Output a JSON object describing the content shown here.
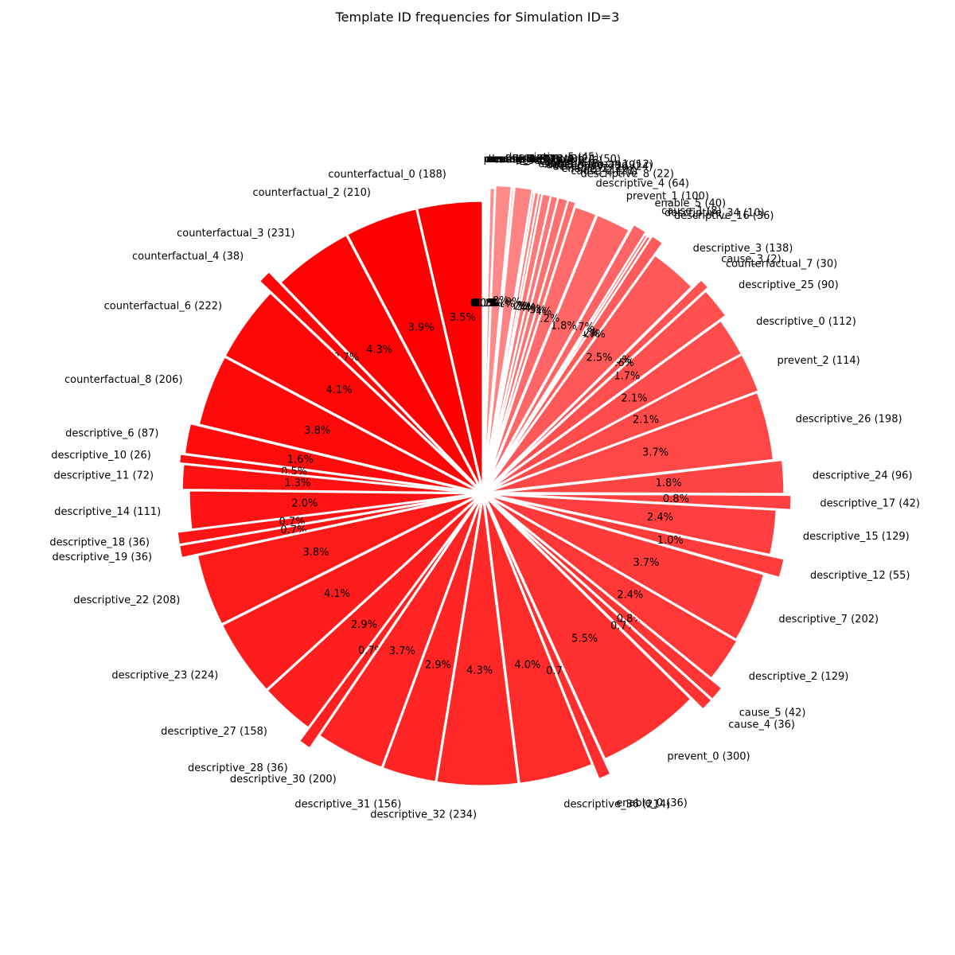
{
  "chart_data": {
    "type": "pie",
    "title": "Template ID frequencies for Simulation ID=3",
    "start_angle": "top, counter-clockwise",
    "color": "#ff0000",
    "slices": [
      {
        "label": "counterfactual_0 (188)",
        "value": 188,
        "pct": "3.5%",
        "color": "#ff0000"
      },
      {
        "label": "counterfactual_2 (210)",
        "value": 210,
        "pct": "3.9%",
        "color": "#ff0000"
      },
      {
        "label": "counterfactual_3 (231)",
        "value": 231,
        "pct": "4.3%",
        "color": "#ff0303"
      },
      {
        "label": "counterfactual_4 (38)",
        "value": 38,
        "pct": "0.7%",
        "color": "#ff0505"
      },
      {
        "label": "counterfactual_6 (222)",
        "value": 222,
        "pct": "4.1%",
        "color": "#ff0707"
      },
      {
        "label": "counterfactual_8 (206)",
        "value": 206,
        "pct": "3.8%",
        "color": "#ff0a0a"
      },
      {
        "label": "descriptive_6 (87)",
        "value": 87,
        "pct": "1.6%",
        "color": "#ff0d0d"
      },
      {
        "label": "descriptive_10 (26)",
        "value": 26,
        "pct": "0.5%",
        "color": "#ff0f0f"
      },
      {
        "label": "descriptive_11 (72)",
        "value": 72,
        "pct": "1.3%",
        "color": "#ff1111"
      },
      {
        "label": "descriptive_14 (111)",
        "value": 111,
        "pct": "2.0%",
        "color": "#ff1313"
      },
      {
        "label": "descriptive_18 (36)",
        "value": 36,
        "pct": "0.7%",
        "color": "#ff1515"
      },
      {
        "label": "descriptive_19 (36)",
        "value": 36,
        "pct": "0.7%",
        "color": "#ff1717"
      },
      {
        "label": "descriptive_22 (208)",
        "value": 208,
        "pct": "3.8%",
        "color": "#ff1a1a"
      },
      {
        "label": "descriptive_23 (224)",
        "value": 224,
        "pct": "4.1%",
        "color": "#ff1c1c"
      },
      {
        "label": "descriptive_27 (158)",
        "value": 158,
        "pct": "2.9%",
        "color": "#ff1f1f"
      },
      {
        "label": "descriptive_28 (36)",
        "value": 36,
        "pct": "0.7%",
        "color": "#ff2121"
      },
      {
        "label": "descriptive_30 (200)",
        "value": 200,
        "pct": "3.7%",
        "color": "#ff2323"
      },
      {
        "label": "descriptive_31 (156)",
        "value": 156,
        "pct": "2.9%",
        "color": "#ff2525"
      },
      {
        "label": "descriptive_32 (234)",
        "value": 234,
        "pct": "4.3%",
        "color": "#ff2828"
      },
      {
        "label": "descriptive_36 (214)",
        "value": 214,
        "pct": "4.0%",
        "color": "#ff2b2b"
      },
      {
        "label": "enable_0 (36)",
        "value": 36,
        "pct": "0.7%",
        "color": "#ff2d2d"
      },
      {
        "label": "prevent_0 (300)",
        "value": 300,
        "pct": "5.5%",
        "color": "#ff3030"
      },
      {
        "label": "cause_4 (36)",
        "value": 36,
        "pct": "0.7%",
        "color": "#ff3232"
      },
      {
        "label": "cause_5 (42)",
        "value": 42,
        "pct": "0.8%",
        "color": "#ff3434"
      },
      {
        "label": "descriptive_2 (129)",
        "value": 129,
        "pct": "2.4%",
        "color": "#ff3737"
      },
      {
        "label": "descriptive_7 (202)",
        "value": 202,
        "pct": "3.7%",
        "color": "#ff3a3a"
      },
      {
        "label": "descriptive_12 (55)",
        "value": 55,
        "pct": "1.0%",
        "color": "#ff3c3c"
      },
      {
        "label": "descriptive_15 (129)",
        "value": 129,
        "pct": "2.4%",
        "color": "#ff3f3f"
      },
      {
        "label": "descriptive_17 (42)",
        "value": 42,
        "pct": "0.8%",
        "color": "#ff4141"
      },
      {
        "label": "descriptive_24 (96)",
        "value": 96,
        "pct": "1.8%",
        "color": "#ff4444"
      },
      {
        "label": "descriptive_26 (198)",
        "value": 198,
        "pct": "3.7%",
        "color": "#ff4747"
      },
      {
        "label": "prevent_2 (114)",
        "value": 114,
        "pct": "2.1%",
        "color": "#ff4a4a"
      },
      {
        "label": "descriptive_0 (112)",
        "value": 112,
        "pct": "2.1%",
        "color": "#ff4c4c"
      },
      {
        "label": "descriptive_25 (90)",
        "value": 90,
        "pct": "1.7%",
        "color": "#ff4f4f"
      },
      {
        "label": "counterfactual_7 (30)",
        "value": 30,
        "pct": "0.6%",
        "color": "#ff5252"
      },
      {
        "label": "cause_3 (2)",
        "value": 2,
        "pct": "0.0%",
        "color": "#ff5555"
      },
      {
        "label": "descriptive_3 (138)",
        "value": 138,
        "pct": "2.5%",
        "color": "#ff5858"
      },
      {
        "label": "descriptive_16 (36)",
        "value": 36,
        "pct": "0.7%",
        "color": "#ff5b5b"
      },
      {
        "label": "descriptive_34 (10)",
        "value": 10,
        "pct": "0.2%",
        "color": "#ff5e5e"
      },
      {
        "label": "cause_1 (8)",
        "value": 8,
        "pct": "0.1%",
        "color": "#ff6161"
      },
      {
        "label": "enable_5 (40)",
        "value": 40,
        "pct": "0.7%",
        "color": "#ff6464"
      },
      {
        "label": "prevent_1 (100)",
        "value": 100,
        "pct": "1.8%",
        "color": "#ff6767"
      },
      {
        "label": "descriptive_4 (64)",
        "value": 64,
        "pct": "1.2%",
        "color": "#ff6a6a"
      },
      {
        "label": "descriptive_8 (22)",
        "value": 22,
        "pct": "0.4%",
        "color": "#ff6d6d"
      },
      {
        "label": "cause_2 (28)",
        "value": 28,
        "pct": "0.5%",
        "color": "#ff7070"
      },
      {
        "label": "enable_2 (20)",
        "value": 20,
        "pct": "0.4%",
        "color": "#ff7474"
      },
      {
        "label": "descriptive_20 (24)",
        "value": 24,
        "pct": "0.4%",
        "color": "#ff7777"
      },
      {
        "label": "descriptive_29 (9)",
        "value": 9,
        "pct": "0.2%",
        "color": "#ff7a7a"
      },
      {
        "label": "counterfactual_1 (12)",
        "value": 12,
        "pct": "0.2%",
        "color": "#ff7d7d"
      },
      {
        "label": "enable_4 (6)",
        "value": 6,
        "pct": "0.1%",
        "color": "#ff8080"
      },
      {
        "label": "descriptive_1 (50)",
        "value": 50,
        "pct": "0.9%",
        "color": "#ff8383"
      },
      {
        "label": "descriptive_9 (6)",
        "value": 6,
        "pct": "0.1%",
        "color": "#ff8686"
      },
      {
        "label": "descriptive_5 (45)",
        "value": 45,
        "pct": "0.8%",
        "color": "#ff8989"
      },
      {
        "label": "cause_0 (14)",
        "value": 14,
        "pct": "0.3%",
        "color": "#ff8c8c"
      },
      {
        "label": "enable_1 (4)",
        "value": 4,
        "pct": "0.1%",
        "color": "#ff8f8f"
      },
      {
        "label": "descriptive_13 (3)",
        "value": 3,
        "pct": "0.1%",
        "color": "#ff9292"
      },
      {
        "label": "counterfactual_5 (2)",
        "value": 2,
        "pct": "0.0%",
        "color": "#ff9595"
      },
      {
        "label": "enable_3 (3)",
        "value": 3,
        "pct": "0.1%",
        "color": "#ff9898"
      },
      {
        "label": "descriptive_21 (4)",
        "value": 4,
        "pct": "0.1%",
        "color": "#ff9b9b"
      },
      {
        "label": "prevent_3 (2)",
        "value": 2,
        "pct": "0.0%",
        "color": "#ff9e9e"
      }
    ]
  }
}
